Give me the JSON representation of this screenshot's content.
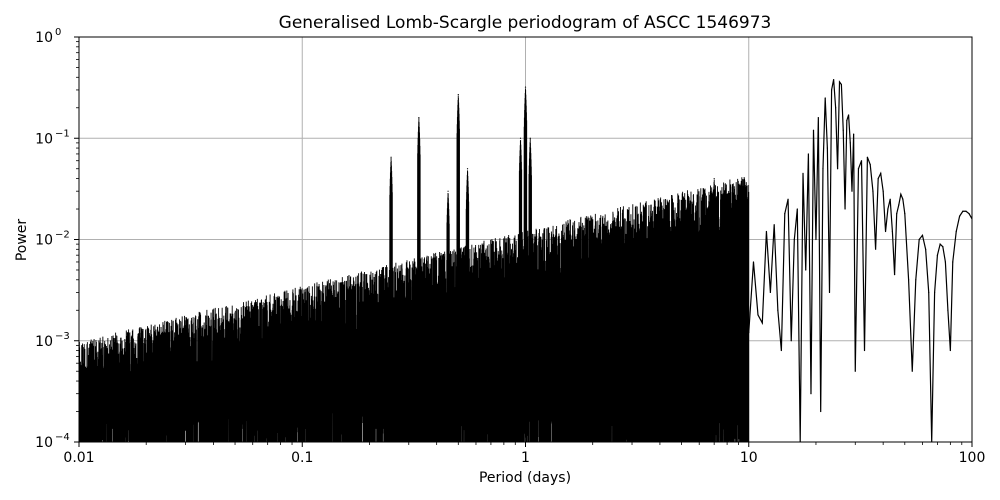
{
  "chart_data": {
    "type": "line",
    "title": "Generalised Lomb-Scargle periodogram of ASCC 1546973",
    "xlabel": "Period (days)",
    "ylabel": "Power",
    "x_scale": "log",
    "y_scale": "log",
    "xlim": [
      0.01,
      100
    ],
    "ylim": [
      0.0001,
      1
    ],
    "x_ticks": [
      {
        "value": 0.01,
        "label": "0.01"
      },
      {
        "value": 0.1,
        "label": "0.1"
      },
      {
        "value": 1,
        "label": "1"
      },
      {
        "value": 10,
        "label": "10"
      },
      {
        "value": 100,
        "label": "100"
      }
    ],
    "y_ticks": [
      {
        "value": 0.0001,
        "base": "10",
        "exp": "−4"
      },
      {
        "value": 0.001,
        "base": "10",
        "exp": "−3"
      },
      {
        "value": 0.01,
        "base": "10",
        "exp": "−2"
      },
      {
        "value": 0.1,
        "base": "10",
        "exp": "−1"
      },
      {
        "value": 1,
        "base": "10",
        "exp": "0"
      }
    ],
    "grid": true,
    "line_color": "#000000",
    "series": [
      {
        "x": [
          10,
          10.5,
          11,
          11.5,
          12,
          12.5,
          13,
          13.5,
          14,
          14.5,
          15,
          15.5,
          16,
          16.5,
          17,
          17.5,
          18,
          18.5,
          19,
          19.5,
          20,
          20.5,
          21,
          21.5,
          22,
          22.5,
          23,
          23.5,
          24,
          24.5,
          25,
          25.5,
          26,
          26.5,
          27,
          27.5,
          28,
          28.5,
          29,
          29.5,
          30,
          31,
          32,
          33,
          34,
          35,
          36,
          37,
          38,
          39,
          40,
          41,
          42,
          43,
          44,
          45,
          46,
          47,
          48,
          49,
          50,
          52,
          54,
          56,
          58,
          60,
          62,
          64,
          66,
          68,
          70,
          72,
          74,
          76,
          78,
          80,
          82,
          85,
          88,
          91,
          94,
          97,
          100
        ],
        "y": [
          0.0012,
          0.006,
          0.0018,
          0.0015,
          0.012,
          0.003,
          0.014,
          0.002,
          0.0008,
          0.018,
          0.025,
          0.001,
          0.01,
          0.02,
          0.0001,
          0.045,
          0.005,
          0.07,
          0.0003,
          0.12,
          0.01,
          0.16,
          0.0002,
          0.05,
          0.25,
          0.08,
          0.003,
          0.3,
          0.38,
          0.2,
          0.05,
          0.36,
          0.34,
          0.12,
          0.02,
          0.15,
          0.17,
          0.09,
          0.03,
          0.11,
          0.0005,
          0.05,
          0.06,
          0.0008,
          0.065,
          0.055,
          0.03,
          0.008,
          0.04,
          0.045,
          0.03,
          0.012,
          0.02,
          0.025,
          0.012,
          0.0045,
          0.018,
          0.022,
          0.028,
          0.025,
          0.018,
          0.004,
          0.0005,
          0.004,
          0.01,
          0.011,
          0.008,
          0.003,
          0.0001,
          0.003,
          0.007,
          0.009,
          0.0085,
          0.006,
          0.002,
          0.0008,
          0.006,
          0.012,
          0.017,
          0.019,
          0.019,
          0.018,
          0.016
        ]
      }
    ],
    "peaks": [
      {
        "x": 0.25,
        "y": 0.065
      },
      {
        "x": 0.333,
        "y": 0.16
      },
      {
        "x": 0.45,
        "y": 0.03
      },
      {
        "x": 0.5,
        "y": 0.27
      },
      {
        "x": 0.55,
        "y": 0.05
      },
      {
        "x": 0.95,
        "y": 0.1
      },
      {
        "x": 1.0,
        "y": 0.32
      },
      {
        "x": 1.05,
        "y": 0.1
      },
      {
        "x": 7.0,
        "y": 0.04
      }
    ]
  }
}
